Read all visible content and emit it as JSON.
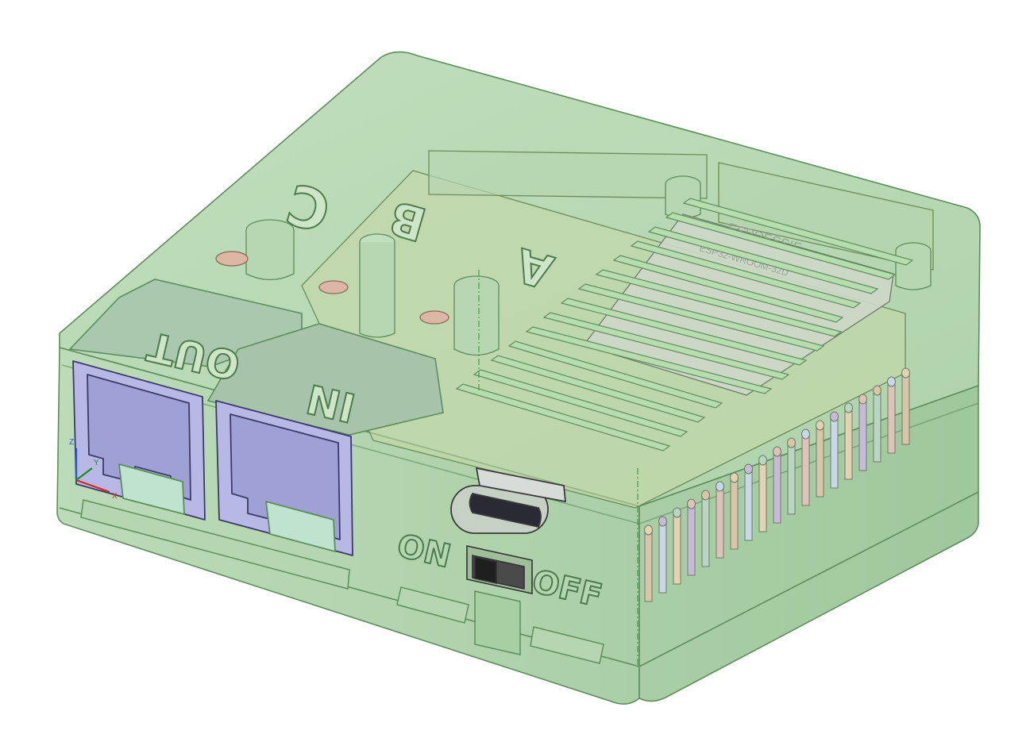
{
  "model": {
    "lid_letters": {
      "c": "C",
      "b": "B",
      "a": "A"
    },
    "port_labels": {
      "out": "OUT",
      "in": "IN"
    },
    "switch_labels": {
      "on": "ON",
      "off": "OFF"
    },
    "chip": {
      "brand": "ESPRESSIF",
      "model": "ESP32-WROOM-32D"
    }
  },
  "triad": {
    "x": "X",
    "y": "Y",
    "z": "Z"
  },
  "colors": {
    "enclosure_fill": "#a9d3a6",
    "enclosure_edge": "#5f8d5d",
    "connector_fill": "#b7b8e6",
    "connector_edge": "#3c3a66",
    "label_fill": "#cde6c7",
    "chip_fill": "#cdd8c8"
  }
}
